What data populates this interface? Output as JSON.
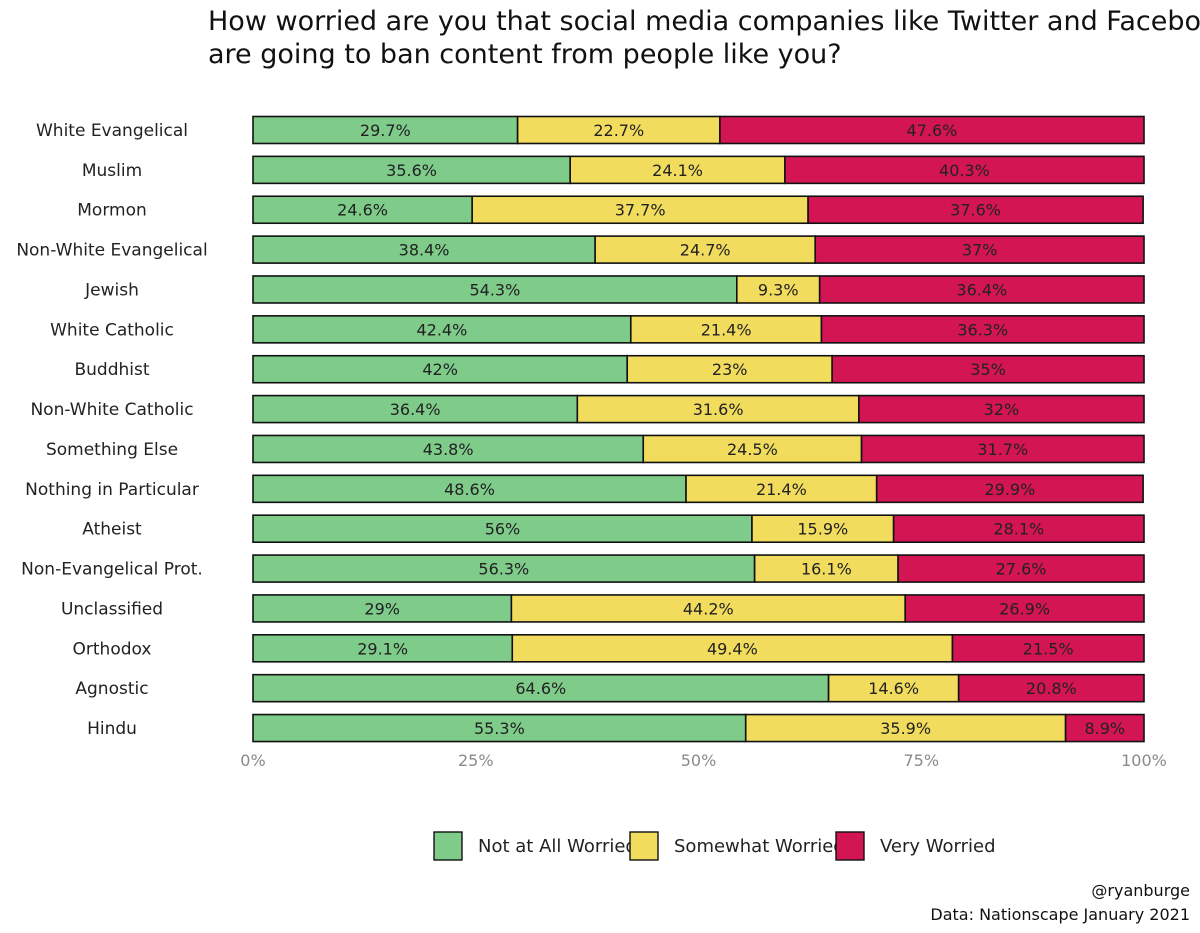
{
  "chart_data": {
    "type": "bar",
    "orientation": "horizontal",
    "stacked": true,
    "title_lines": [
      "How worried are you that social media companies like Twitter and Facebook",
      "are going to ban content from people like you?"
    ],
    "categories": [
      "White Evangelical",
      "Muslim",
      "Mormon",
      "Non-White Evangelical",
      "Jewish",
      "White Catholic",
      "Buddhist",
      "Non-White Catholic",
      "Something Else",
      "Nothing in Particular",
      "Atheist",
      "Non-Evangelical Prot.",
      "Unclassified",
      "Orthodox",
      "Agnostic",
      "Hindu"
    ],
    "series": [
      {
        "name": "Not at All Worried",
        "color": "#7ecb8a",
        "values": [
          29.7,
          35.6,
          24.6,
          38.4,
          54.3,
          42.4,
          42,
          36.4,
          43.8,
          48.6,
          56,
          56.3,
          29,
          29.1,
          64.6,
          55.3
        ],
        "labels": [
          "29.7%",
          "35.6%",
          "24.6%",
          "38.4%",
          "54.3%",
          "42.4%",
          "42%",
          "36.4%",
          "43.8%",
          "48.6%",
          "56%",
          "56.3%",
          "29%",
          "29.1%",
          "64.6%",
          "55.3%"
        ]
      },
      {
        "name": "Somewhat Worried",
        "color": "#f2dc5d",
        "values": [
          22.7,
          24.1,
          37.7,
          24.7,
          9.3,
          21.4,
          23,
          31.6,
          24.5,
          21.4,
          15.9,
          16.1,
          44.2,
          49.4,
          14.6,
          35.9
        ],
        "labels": [
          "22.7%",
          "24.1%",
          "37.7%",
          "24.7%",
          "9.3%",
          "21.4%",
          "23%",
          "31.6%",
          "24.5%",
          "21.4%",
          "15.9%",
          "16.1%",
          "44.2%",
          "49.4%",
          "14.6%",
          "35.9%"
        ]
      },
      {
        "name": "Very Worried",
        "color": "#d41553",
        "values": [
          47.6,
          40.3,
          37.6,
          37,
          36.4,
          36.3,
          35,
          32,
          31.7,
          29.9,
          28.1,
          27.6,
          26.9,
          21.5,
          20.8,
          8.9
        ],
        "labels": [
          "47.6%",
          "40.3%",
          "37.6%",
          "37%",
          "36.4%",
          "36.3%",
          "35%",
          "32%",
          "31.7%",
          "29.9%",
          "28.1%",
          "27.6%",
          "26.9%",
          "21.5%",
          "20.8%",
          "8.9%"
        ]
      }
    ],
    "xlim": [
      0,
      100
    ],
    "x_ticks": [
      0,
      25,
      50,
      75,
      100
    ],
    "x_tick_labels": [
      "0%",
      "25%",
      "50%",
      "75%",
      "100%"
    ],
    "xlabel": "",
    "ylabel": "",
    "grid": false,
    "legend_position": "bottom",
    "caption_lines": [
      "@ryanburge",
      "Data: Nationscape January 2021"
    ]
  }
}
